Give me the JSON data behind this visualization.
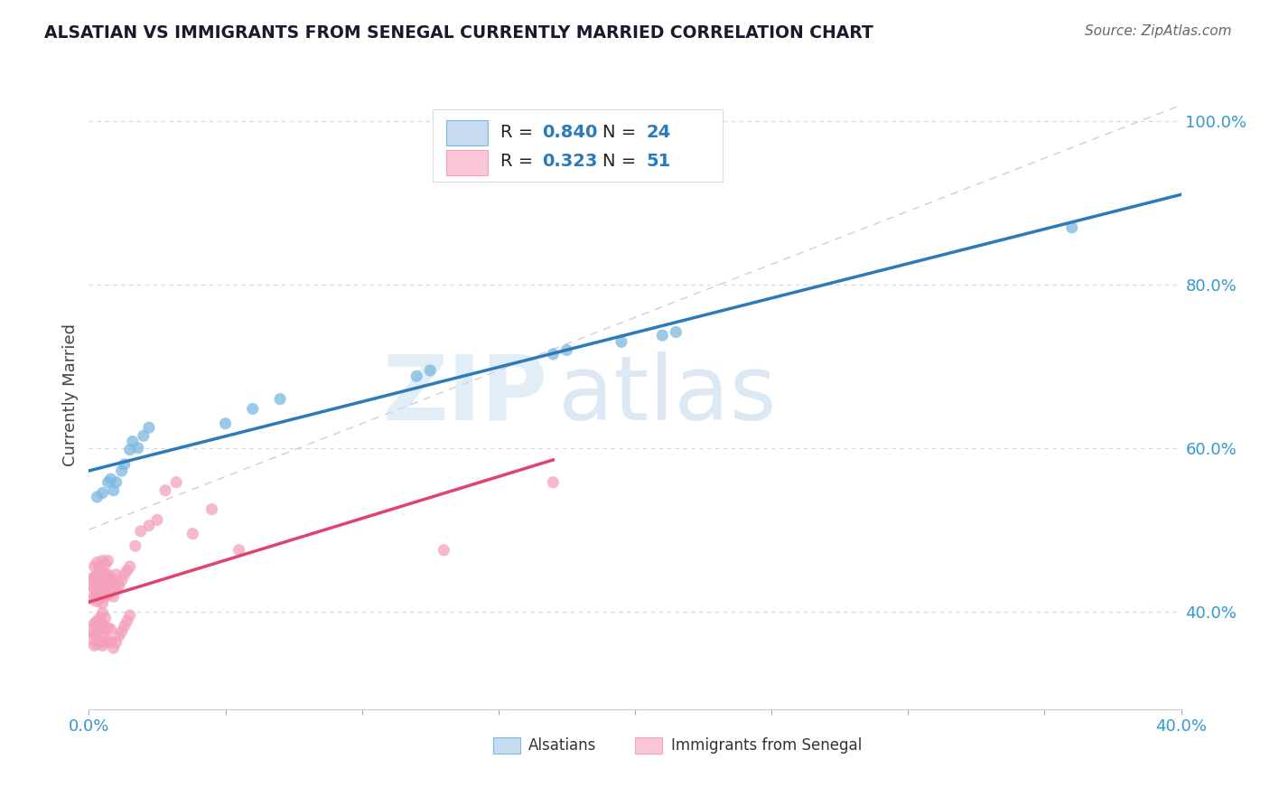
{
  "title": "ALSATIAN VS IMMIGRANTS FROM SENEGAL CURRENTLY MARRIED CORRELATION CHART",
  "source": "Source: ZipAtlas.com",
  "ylabel_label": "Currently Married",
  "xlim": [
    0.0,
    0.4
  ],
  "ylim": [
    0.28,
    1.05
  ],
  "x_ticks": [
    0.0,
    0.05,
    0.1,
    0.15,
    0.2,
    0.25,
    0.3,
    0.35,
    0.4
  ],
  "y_ticks": [
    0.4,
    0.6,
    0.8,
    1.0
  ],
  "y_tick_labels": [
    "40.0%",
    "60.0%",
    "80.0%",
    "100.0%"
  ],
  "blue_dot_color": "#7ab8e0",
  "blue_line_color": "#2b7bba",
  "pink_dot_color": "#f4a0bb",
  "pink_line_color": "#e0446e",
  "diag_color": "#d0b0c0",
  "R_blue": 0.84,
  "N_blue": 24,
  "R_pink": 0.323,
  "N_pink": 51,
  "watermark_zip": "ZIP",
  "watermark_atlas": "atlas",
  "legend_label_blue": "Alsatians",
  "legend_label_pink": "Immigrants from Senegal",
  "blue_fill": "#c6dbef",
  "blue_edge": "#7ab8e0",
  "pink_fill": "#fcc5d8",
  "pink_edge": "#f4a0bb",
  "blue_x": [
    0.003,
    0.005,
    0.007,
    0.008,
    0.009,
    0.01,
    0.012,
    0.013,
    0.015,
    0.016,
    0.018,
    0.02,
    0.022,
    0.05,
    0.06,
    0.07,
    0.12,
    0.125,
    0.17,
    0.175,
    0.195,
    0.21,
    0.215,
    0.36
  ],
  "blue_y": [
    0.54,
    0.545,
    0.558,
    0.562,
    0.548,
    0.558,
    0.572,
    0.58,
    0.598,
    0.608,
    0.6,
    0.615,
    0.625,
    0.63,
    0.648,
    0.66,
    0.688,
    0.695,
    0.715,
    0.72,
    0.73,
    0.738,
    0.742,
    0.87
  ],
  "pink_x": [
    0.001,
    0.001,
    0.001,
    0.002,
    0.002,
    0.002,
    0.002,
    0.003,
    0.003,
    0.003,
    0.003,
    0.003,
    0.004,
    0.004,
    0.004,
    0.004,
    0.005,
    0.005,
    0.005,
    0.005,
    0.005,
    0.006,
    0.006,
    0.006,
    0.006,
    0.007,
    0.007,
    0.007,
    0.007,
    0.008,
    0.008,
    0.009,
    0.009,
    0.01,
    0.01,
    0.011,
    0.012,
    0.013,
    0.014,
    0.015,
    0.017,
    0.019,
    0.022,
    0.025,
    0.028,
    0.032,
    0.038,
    0.045,
    0.055,
    0.13,
    0.17
  ],
  "pink_y": [
    0.415,
    0.43,
    0.44,
    0.418,
    0.428,
    0.442,
    0.455,
    0.412,
    0.422,
    0.432,
    0.445,
    0.46,
    0.415,
    0.428,
    0.44,
    0.452,
    0.41,
    0.422,
    0.435,
    0.448,
    0.462,
    0.418,
    0.432,
    0.445,
    0.458,
    0.42,
    0.432,
    0.445,
    0.462,
    0.425,
    0.44,
    0.418,
    0.438,
    0.428,
    0.445,
    0.432,
    0.438,
    0.445,
    0.45,
    0.455,
    0.48,
    0.498,
    0.505,
    0.512,
    0.548,
    0.558,
    0.495,
    0.525,
    0.475,
    0.475,
    0.558
  ],
  "pink_x_low": [
    0.001,
    0.001,
    0.002,
    0.002,
    0.002,
    0.003,
    0.003,
    0.003,
    0.004,
    0.004,
    0.004,
    0.005,
    0.005,
    0.005,
    0.005,
    0.006,
    0.006,
    0.006,
    0.007,
    0.007,
    0.008,
    0.008,
    0.009,
    0.01,
    0.011,
    0.012,
    0.013,
    0.014,
    0.015
  ],
  "pink_y_low": [
    0.365,
    0.378,
    0.358,
    0.372,
    0.385,
    0.36,
    0.375,
    0.388,
    0.362,
    0.378,
    0.392,
    0.358,
    0.372,
    0.385,
    0.398,
    0.362,
    0.378,
    0.392,
    0.365,
    0.38,
    0.362,
    0.378,
    0.355,
    0.362,
    0.37,
    0.375,
    0.382,
    0.388,
    0.395
  ],
  "background_color": "#ffffff",
  "grid_color": "#d8d8d8",
  "title_color": "#1a1a2e",
  "source_color": "#666666",
  "label_color": "#3399cc"
}
